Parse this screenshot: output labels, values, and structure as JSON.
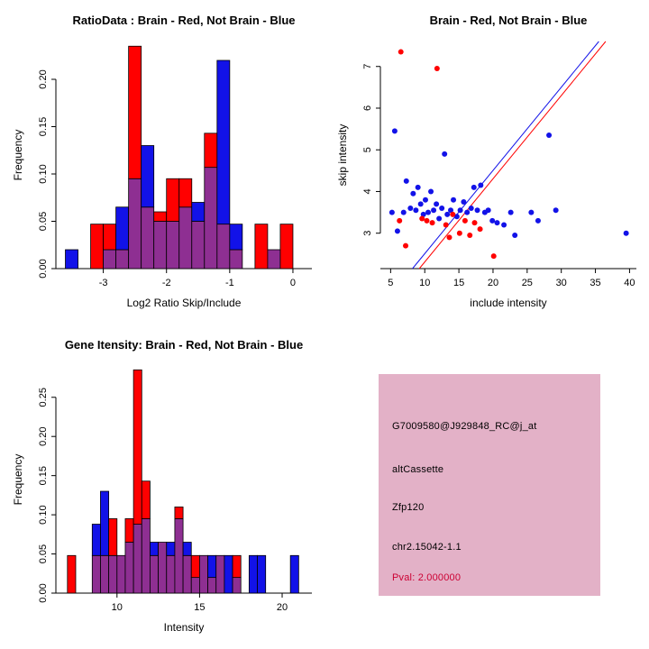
{
  "colors": {
    "red": "#ff0000",
    "blue": "#1212e8",
    "purple": "#8e2f92",
    "axis": "#000000"
  },
  "chart_data": [
    {
      "id": "ratio_histogram",
      "type": "bar",
      "title": "RatioData : Brain - Red, Not Brain - Blue",
      "xlabel": "Log2 Ratio Skip/Include",
      "ylabel": "Frequency",
      "xlim": [
        -3.75,
        0.3
      ],
      "ylim": [
        0,
        0.24
      ],
      "xticks": [
        -3,
        -2,
        -1,
        0
      ],
      "xtick_labels": [
        "-3",
        "-2",
        "-1",
        "0"
      ],
      "yticks": [
        0,
        0.05,
        0.1,
        0.15,
        0.2
      ],
      "ytick_labels": [
        "0.00",
        "0.05",
        "0.10",
        "0.15",
        "0.20"
      ],
      "legend_note": "red = Brain, blue = Not Brain, purple = overlap",
      "bin_width": 0.2,
      "bins": [
        {
          "x": -3.6,
          "red": 0,
          "blue": 0.02
        },
        {
          "x": -3.2,
          "red": 0.047,
          "blue": 0
        },
        {
          "x": -3.0,
          "red": 0.047,
          "blue": 0.02
        },
        {
          "x": -2.8,
          "red": 0.02,
          "blue": 0.065
        },
        {
          "x": -2.6,
          "red": 0.235,
          "blue": 0.095
        },
        {
          "x": -2.4,
          "red": 0.065,
          "blue": 0.13
        },
        {
          "x": -2.2,
          "red": 0.06,
          "blue": 0.05
        },
        {
          "x": -2.0,
          "red": 0.095,
          "blue": 0.05
        },
        {
          "x": -1.8,
          "red": 0.095,
          "blue": 0.065
        },
        {
          "x": -1.6,
          "red": 0.05,
          "blue": 0.07
        },
        {
          "x": -1.4,
          "red": 0.143,
          "blue": 0.107
        },
        {
          "x": -1.2,
          "red": 0.047,
          "blue": 0.22
        },
        {
          "x": -1.0,
          "red": 0.02,
          "blue": 0.047
        },
        {
          "x": -0.6,
          "red": 0.047,
          "blue": 0
        },
        {
          "x": -0.4,
          "red": 0.02,
          "blue": 0.02
        },
        {
          "x": -0.2,
          "red": 0.047,
          "blue": 0
        }
      ]
    },
    {
      "id": "intensity_scatter",
      "type": "scatter",
      "title": "Brain - Red, Not Brain - Blue",
      "xlabel": "include intensity",
      "ylabel": "skip intensity",
      "xlim": [
        3.5,
        41
      ],
      "ylim": [
        2.15,
        7.6
      ],
      "xticks": [
        5,
        10,
        15,
        20,
        25,
        30,
        35,
        40
      ],
      "xtick_labels": [
        "5",
        "10",
        "15",
        "20",
        "25",
        "30",
        "35",
        "40"
      ],
      "yticks": [
        3,
        4,
        5,
        6,
        7
      ],
      "ytick_labels": [
        "3",
        "4",
        "5",
        "6",
        "7"
      ],
      "blue_points": [
        [
          5.2,
          3.5
        ],
        [
          5.6,
          5.45
        ],
        [
          6.0,
          3.05
        ],
        [
          6.9,
          3.5
        ],
        [
          7.3,
          4.25
        ],
        [
          7.9,
          3.6
        ],
        [
          8.3,
          3.95
        ],
        [
          8.7,
          3.55
        ],
        [
          9.0,
          4.1
        ],
        [
          9.4,
          3.7
        ],
        [
          9.8,
          3.45
        ],
        [
          10.1,
          3.8
        ],
        [
          10.5,
          3.5
        ],
        [
          10.9,
          4.0
        ],
        [
          11.3,
          3.55
        ],
        [
          11.7,
          3.7
        ],
        [
          12.1,
          3.35
        ],
        [
          12.5,
          3.6
        ],
        [
          12.9,
          4.9
        ],
        [
          13.3,
          3.45
        ],
        [
          13.8,
          3.55
        ],
        [
          14.2,
          3.8
        ],
        [
          14.7,
          3.4
        ],
        [
          15.2,
          3.55
        ],
        [
          15.7,
          3.75
        ],
        [
          16.2,
          3.5
        ],
        [
          16.8,
          3.6
        ],
        [
          17.2,
          4.1
        ],
        [
          17.7,
          3.55
        ],
        [
          18.2,
          4.15
        ],
        [
          18.8,
          3.5
        ],
        [
          19.3,
          3.55
        ],
        [
          19.9,
          3.3
        ],
        [
          20.6,
          3.25
        ],
        [
          21.6,
          3.2
        ],
        [
          22.6,
          3.5
        ],
        [
          23.2,
          2.95
        ],
        [
          25.6,
          3.5
        ],
        [
          26.6,
          3.3
        ],
        [
          28.2,
          5.35
        ],
        [
          29.2,
          3.55
        ],
        [
          39.5,
          3.0
        ]
      ],
      "red_points": [
        [
          6.5,
          7.35
        ],
        [
          11.8,
          6.95
        ],
        [
          6.3,
          3.3
        ],
        [
          7.2,
          2.7
        ],
        [
          9.6,
          3.35
        ],
        [
          10.3,
          3.3
        ],
        [
          11.1,
          3.25
        ],
        [
          13.1,
          3.2
        ],
        [
          13.6,
          2.9
        ],
        [
          14.1,
          3.45
        ],
        [
          15.1,
          3.0
        ],
        [
          15.9,
          3.3
        ],
        [
          16.6,
          2.95
        ],
        [
          17.3,
          3.25
        ],
        [
          18.1,
          3.1
        ],
        [
          20.1,
          2.45
        ]
      ],
      "blue_line": [
        [
          8.2,
          2.15
        ],
        [
          35.5,
          7.6
        ]
      ],
      "red_line": [
        [
          9.2,
          2.15
        ],
        [
          36.5,
          7.6
        ]
      ]
    },
    {
      "id": "gene_intensity_histogram",
      "type": "bar",
      "title": "Gene Itensity: Brain - Red, Not Brain - Blue",
      "xlabel": "Intensity",
      "ylabel": "Frequency",
      "xlim": [
        6.3,
        21.8
      ],
      "ylim": [
        0,
        0.29
      ],
      "xticks": [
        10,
        15,
        20
      ],
      "xtick_labels": [
        "10",
        "15",
        "20"
      ],
      "yticks": [
        0,
        0.05,
        0.1,
        0.15,
        0.2,
        0.25
      ],
      "ytick_labels": [
        "0.00",
        "0.05",
        "0.10",
        "0.15",
        "0.20",
        "0.25"
      ],
      "legend_note": "red = Brain, blue = Not Brain, purple = overlap",
      "bin_width": 0.5,
      "bins": [
        {
          "x": 7.0,
          "red": 0.048,
          "blue": 0
        },
        {
          "x": 8.5,
          "red": 0.048,
          "blue": 0.088
        },
        {
          "x": 9.0,
          "red": 0.048,
          "blue": 0.13
        },
        {
          "x": 9.5,
          "red": 0.095,
          "blue": 0.048
        },
        {
          "x": 10.0,
          "red": 0.048,
          "blue": 0.048
        },
        {
          "x": 10.5,
          "red": 0.095,
          "blue": 0.065
        },
        {
          "x": 11.0,
          "red": 0.285,
          "blue": 0.088
        },
        {
          "x": 11.5,
          "red": 0.143,
          "blue": 0.095
        },
        {
          "x": 12.0,
          "red": 0.048,
          "blue": 0.065
        },
        {
          "x": 12.5,
          "red": 0.065,
          "blue": 0.065
        },
        {
          "x": 13.0,
          "red": 0.048,
          "blue": 0.065
        },
        {
          "x": 13.5,
          "red": 0.11,
          "blue": 0.095
        },
        {
          "x": 14.0,
          "red": 0.048,
          "blue": 0.065
        },
        {
          "x": 14.5,
          "red": 0.048,
          "blue": 0.02
        },
        {
          "x": 15.0,
          "red": 0.048,
          "blue": 0.048
        },
        {
          "x": 15.5,
          "red": 0.02,
          "blue": 0.048
        },
        {
          "x": 16.0,
          "red": 0.048,
          "blue": 0.048
        },
        {
          "x": 16.5,
          "red": 0,
          "blue": 0.048
        },
        {
          "x": 17.0,
          "red": 0.048,
          "blue": 0.02
        },
        {
          "x": 18.0,
          "red": 0,
          "blue": 0.048
        },
        {
          "x": 18.5,
          "red": 0,
          "blue": 0.048
        },
        {
          "x": 20.5,
          "red": 0,
          "blue": 0.048
        }
      ]
    }
  ],
  "info_panel": {
    "bg_color": "#e3b1c7",
    "pval_color": "#cc0033",
    "lines": [
      "G7009580@J929848_RC@j_at",
      "altCassette",
      "Zfp120",
      "chr2.15042-1.1"
    ],
    "pval": "Pval: 2.000000"
  }
}
